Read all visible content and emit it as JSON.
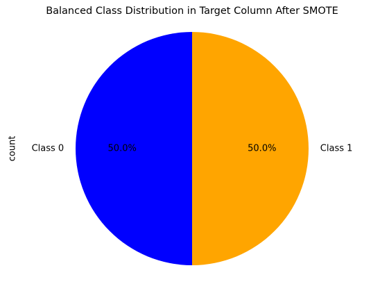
{
  "chart_data": {
    "type": "pie",
    "title": "Balanced Class Distribution in Target Column After SMOTE",
    "ylabel": "count",
    "categories": [
      "Class 0",
      "Class 1"
    ],
    "values": [
      50,
      50
    ],
    "value_labels": [
      "50.0%",
      "50.0%"
    ],
    "colors": [
      "#0000ff",
      "#ffa500"
    ]
  }
}
